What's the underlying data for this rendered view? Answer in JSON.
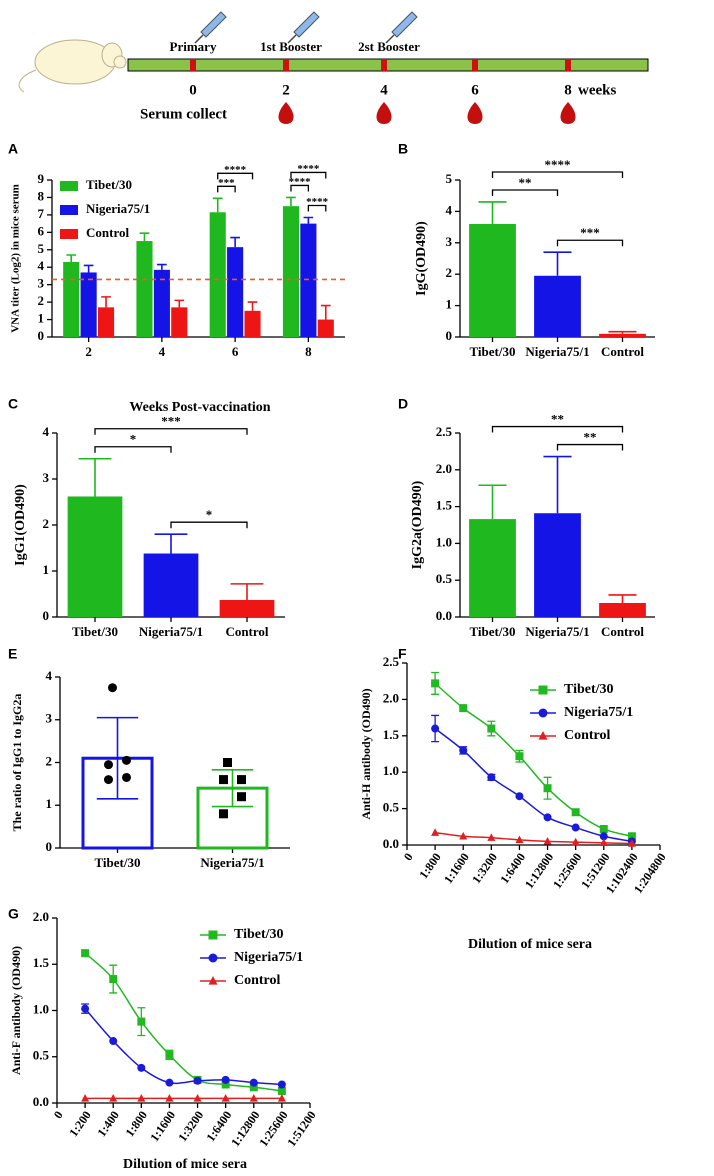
{
  "timeline": {
    "doses": [
      "Primary",
      "1st Booster",
      "2st Booster"
    ],
    "weeks": [
      "0",
      "2",
      "4",
      "6",
      "8"
    ],
    "unit": "weeks",
    "serum_label": "Serum collect"
  },
  "chart_data": [
    {
      "type": "bar",
      "label": "A",
      "categories": [
        "2",
        "4",
        "6",
        "8"
      ],
      "series": [
        {
          "name": "Tibet/30",
          "color": "#1fb81f",
          "values": [
            4.3,
            5.5,
            7.15,
            7.5
          ],
          "errors": [
            0.4,
            0.45,
            0.8,
            0.5
          ]
        },
        {
          "name": "Nigeria75/1",
          "color": "#1414e6",
          "values": [
            3.7,
            3.85,
            5.15,
            6.5
          ],
          "errors": [
            0.4,
            0.3,
            0.55,
            0.35
          ]
        },
        {
          "name": "Control",
          "color": "#ee1515",
          "values": [
            1.7,
            1.7,
            1.5,
            1.0
          ],
          "errors": [
            0.6,
            0.4,
            0.5,
            0.8
          ]
        }
      ],
      "ylim": [
        0,
        9
      ],
      "yticks": [
        0,
        1,
        2,
        3,
        4,
        5,
        6,
        7,
        8,
        9
      ],
      "ylabel": "VNA titer (Log2) in mice serum",
      "xlabel": "Weeks Post-vaccination",
      "reference_line": {
        "value": 3.3,
        "color": "#f05a28"
      },
      "error_bars": "up",
      "legend": "upper left",
      "annotations": [
        {
          "text": "***",
          "group": 2,
          "from": 0,
          "to": 1
        },
        {
          "text": "****",
          "group": 2,
          "from": 0,
          "to": 2
        },
        {
          "text": "****",
          "group": 3,
          "from": 0,
          "to": 1
        },
        {
          "text": "****",
          "group": 3,
          "from": 1,
          "to": 2
        },
        {
          "text": "****",
          "group": 3,
          "from": 0,
          "to": 2
        }
      ]
    },
    {
      "type": "bar",
      "label": "B",
      "categories": [
        "Tibet/30",
        "Nigeria75/1",
        "Control"
      ],
      "values": [
        3.6,
        1.95,
        0.1
      ],
      "errors": [
        0.7,
        0.75,
        0.07
      ],
      "colors": [
        "#1fb81f",
        "#1414e6",
        "#ee1515"
      ],
      "ylim": [
        0,
        5
      ],
      "yticks": [
        0,
        1,
        2,
        3,
        4,
        5
      ],
      "ylabel": "IgG(OD490)",
      "error_bars": "up",
      "annotations": [
        {
          "text": "**",
          "from": 0,
          "to": 1
        },
        {
          "text": "***",
          "from": 1,
          "to": 2
        },
        {
          "text": "****",
          "from": 0,
          "to": 2
        }
      ]
    },
    {
      "type": "bar",
      "label": "C",
      "categories": [
        "Tibet/30",
        "Nigeria75/1",
        "Control"
      ],
      "values": [
        2.62,
        1.38,
        0.37
      ],
      "errors": [
        0.82,
        0.42,
        0.35
      ],
      "colors": [
        "#1fb81f",
        "#1414e6",
        "#ee1515"
      ],
      "ylim": [
        0,
        4
      ],
      "yticks": [
        0,
        1,
        2,
        3,
        4
      ],
      "ylabel": "IgG1(OD490)",
      "error_bars": "up",
      "annotations": [
        {
          "text": "*",
          "from": 0,
          "to": 1
        },
        {
          "text": "*",
          "from": 1,
          "to": 2
        },
        {
          "text": "***",
          "from": 0,
          "to": 2
        }
      ]
    },
    {
      "type": "bar",
      "label": "D",
      "categories": [
        "Tibet/30",
        "Nigeria75/1",
        "Control"
      ],
      "values": [
        1.33,
        1.41,
        0.19
      ],
      "errors": [
        0.46,
        0.77,
        0.11
      ],
      "colors": [
        "#1fb81f",
        "#1414e6",
        "#ee1515"
      ],
      "ylim": [
        0,
        2.5
      ],
      "yticks": [
        {
          "value": 0,
          "label": "0.0"
        },
        {
          "value": 0.5,
          "label": "0.5"
        },
        {
          "value": 1,
          "label": "1.0"
        },
        {
          "value": 1.5,
          "label": "1.5"
        },
        {
          "value": 2,
          "label": "2.0"
        },
        {
          "value": 2.5,
          "label": "2.5"
        }
      ],
      "ylabel": "IgG2a(OD490)",
      "error_bars": "up",
      "annotations": [
        {
          "text": "**",
          "from": 1,
          "to": 2
        },
        {
          "text": "**",
          "from": 0,
          "to": 2
        }
      ]
    },
    {
      "type": "bar",
      "label": "E",
      "categories": [
        "Tibet/30",
        "Nigeria75/1"
      ],
      "values": [
        2.1,
        1.4
      ],
      "errors": [
        0.95,
        0.43
      ],
      "colors": [
        "#1414e6",
        "#1fb81f"
      ],
      "outline": true,
      "error_bars": "both",
      "ylim": [
        0,
        4
      ],
      "yticks": [
        0,
        1,
        2,
        3,
        4
      ],
      "ylabel": "The ratio of IgG1 to IgG2a",
      "points": [
        [
          3.75,
          2.05,
          1.95,
          1.65,
          1.6
        ],
        [
          2.0,
          1.6,
          1.6,
          1.2,
          0.8
        ]
      ],
      "point_markers": [
        "circle",
        "square"
      ]
    },
    {
      "type": "line",
      "label": "F",
      "categories": [
        "0",
        "1:800",
        "1:1600",
        "1:3200",
        "1:6400",
        "1:12800",
        "1:25600",
        "1:51200",
        "1:102400",
        "1:204800"
      ],
      "series": [
        {
          "name": "Tibet/30",
          "color": "#22b822",
          "marker": "square",
          "values": [
            null,
            2.22,
            1.88,
            1.6,
            1.22,
            0.78,
            0.45,
            0.22,
            0.12,
            null
          ],
          "errors": [
            null,
            0.15,
            null,
            0.1,
            0.08,
            0.15,
            null,
            null,
            null,
            null
          ]
        },
        {
          "name": "Nigeria75/1",
          "color": "#1a1adb",
          "marker": "circle",
          "values": [
            null,
            1.6,
            1.3,
            0.93,
            0.67,
            0.38,
            0.24,
            0.12,
            0.05,
            null
          ],
          "errors": [
            null,
            0.18,
            0.05,
            0.04,
            null,
            null,
            null,
            null,
            null,
            null
          ]
        },
        {
          "name": "Control",
          "color": "#e02020",
          "marker": "triangle",
          "values": [
            null,
            0.17,
            0.12,
            0.1,
            0.07,
            0.05,
            0.04,
            0.03,
            0.02,
            null
          ]
        }
      ],
      "ylim": [
        0,
        2.5
      ],
      "yticks": [
        {
          "value": 0,
          "label": "0.0"
        },
        {
          "value": 0.5,
          "label": "0.5"
        },
        {
          "value": 1,
          "label": "1.0"
        },
        {
          "value": 1.5,
          "label": "1.5"
        },
        {
          "value": 2,
          "label": "2.0"
        },
        {
          "value": 2.5,
          "label": "2.5"
        }
      ],
      "ylabel": "Anti-H antibody (OD490)",
      "xlabel": "Dilution of mice sera",
      "legend": "upper right"
    },
    {
      "type": "line",
      "label": "G",
      "categories": [
        "0",
        "1:200",
        "1:400",
        "1:800",
        "1:1600",
        "1:3200",
        "1:6400",
        "1:12800",
        "1:25600",
        "1:51200"
      ],
      "series": [
        {
          "name": "Tibet/30",
          "color": "#22b822",
          "marker": "square",
          "values": [
            null,
            1.62,
            1.34,
            0.88,
            0.52,
            0.25,
            0.2,
            0.17,
            0.13,
            null
          ],
          "errors": [
            null,
            null,
            0.15,
            0.15,
            0.05,
            null,
            null,
            null,
            null,
            null
          ]
        },
        {
          "name": "Nigeria75/1",
          "color": "#1a1adb",
          "marker": "circle",
          "values": [
            null,
            1.02,
            0.67,
            0.38,
            0.22,
            0.24,
            0.25,
            0.22,
            0.2,
            null
          ],
          "errors": [
            null,
            0.05,
            null,
            null,
            null,
            null,
            null,
            null,
            null,
            null
          ]
        },
        {
          "name": "Control",
          "color": "#e02020",
          "marker": "triangle",
          "values": [
            null,
            0.05,
            0.05,
            0.05,
            0.05,
            0.05,
            0.05,
            0.05,
            0.05,
            null
          ]
        }
      ],
      "ylim": [
        0,
        2
      ],
      "yticks": [
        {
          "value": 0,
          "label": "0.0"
        },
        {
          "value": 0.5,
          "label": "0.5"
        },
        {
          "value": 1,
          "label": "1.0"
        },
        {
          "value": 1.5,
          "label": "1.5"
        },
        {
          "value": 2,
          "label": "2.0"
        }
      ],
      "ylabel": "Anti-F antibody (OD490)",
      "xlabel": "Dilution of mice sera",
      "legend": "upper right"
    }
  ]
}
